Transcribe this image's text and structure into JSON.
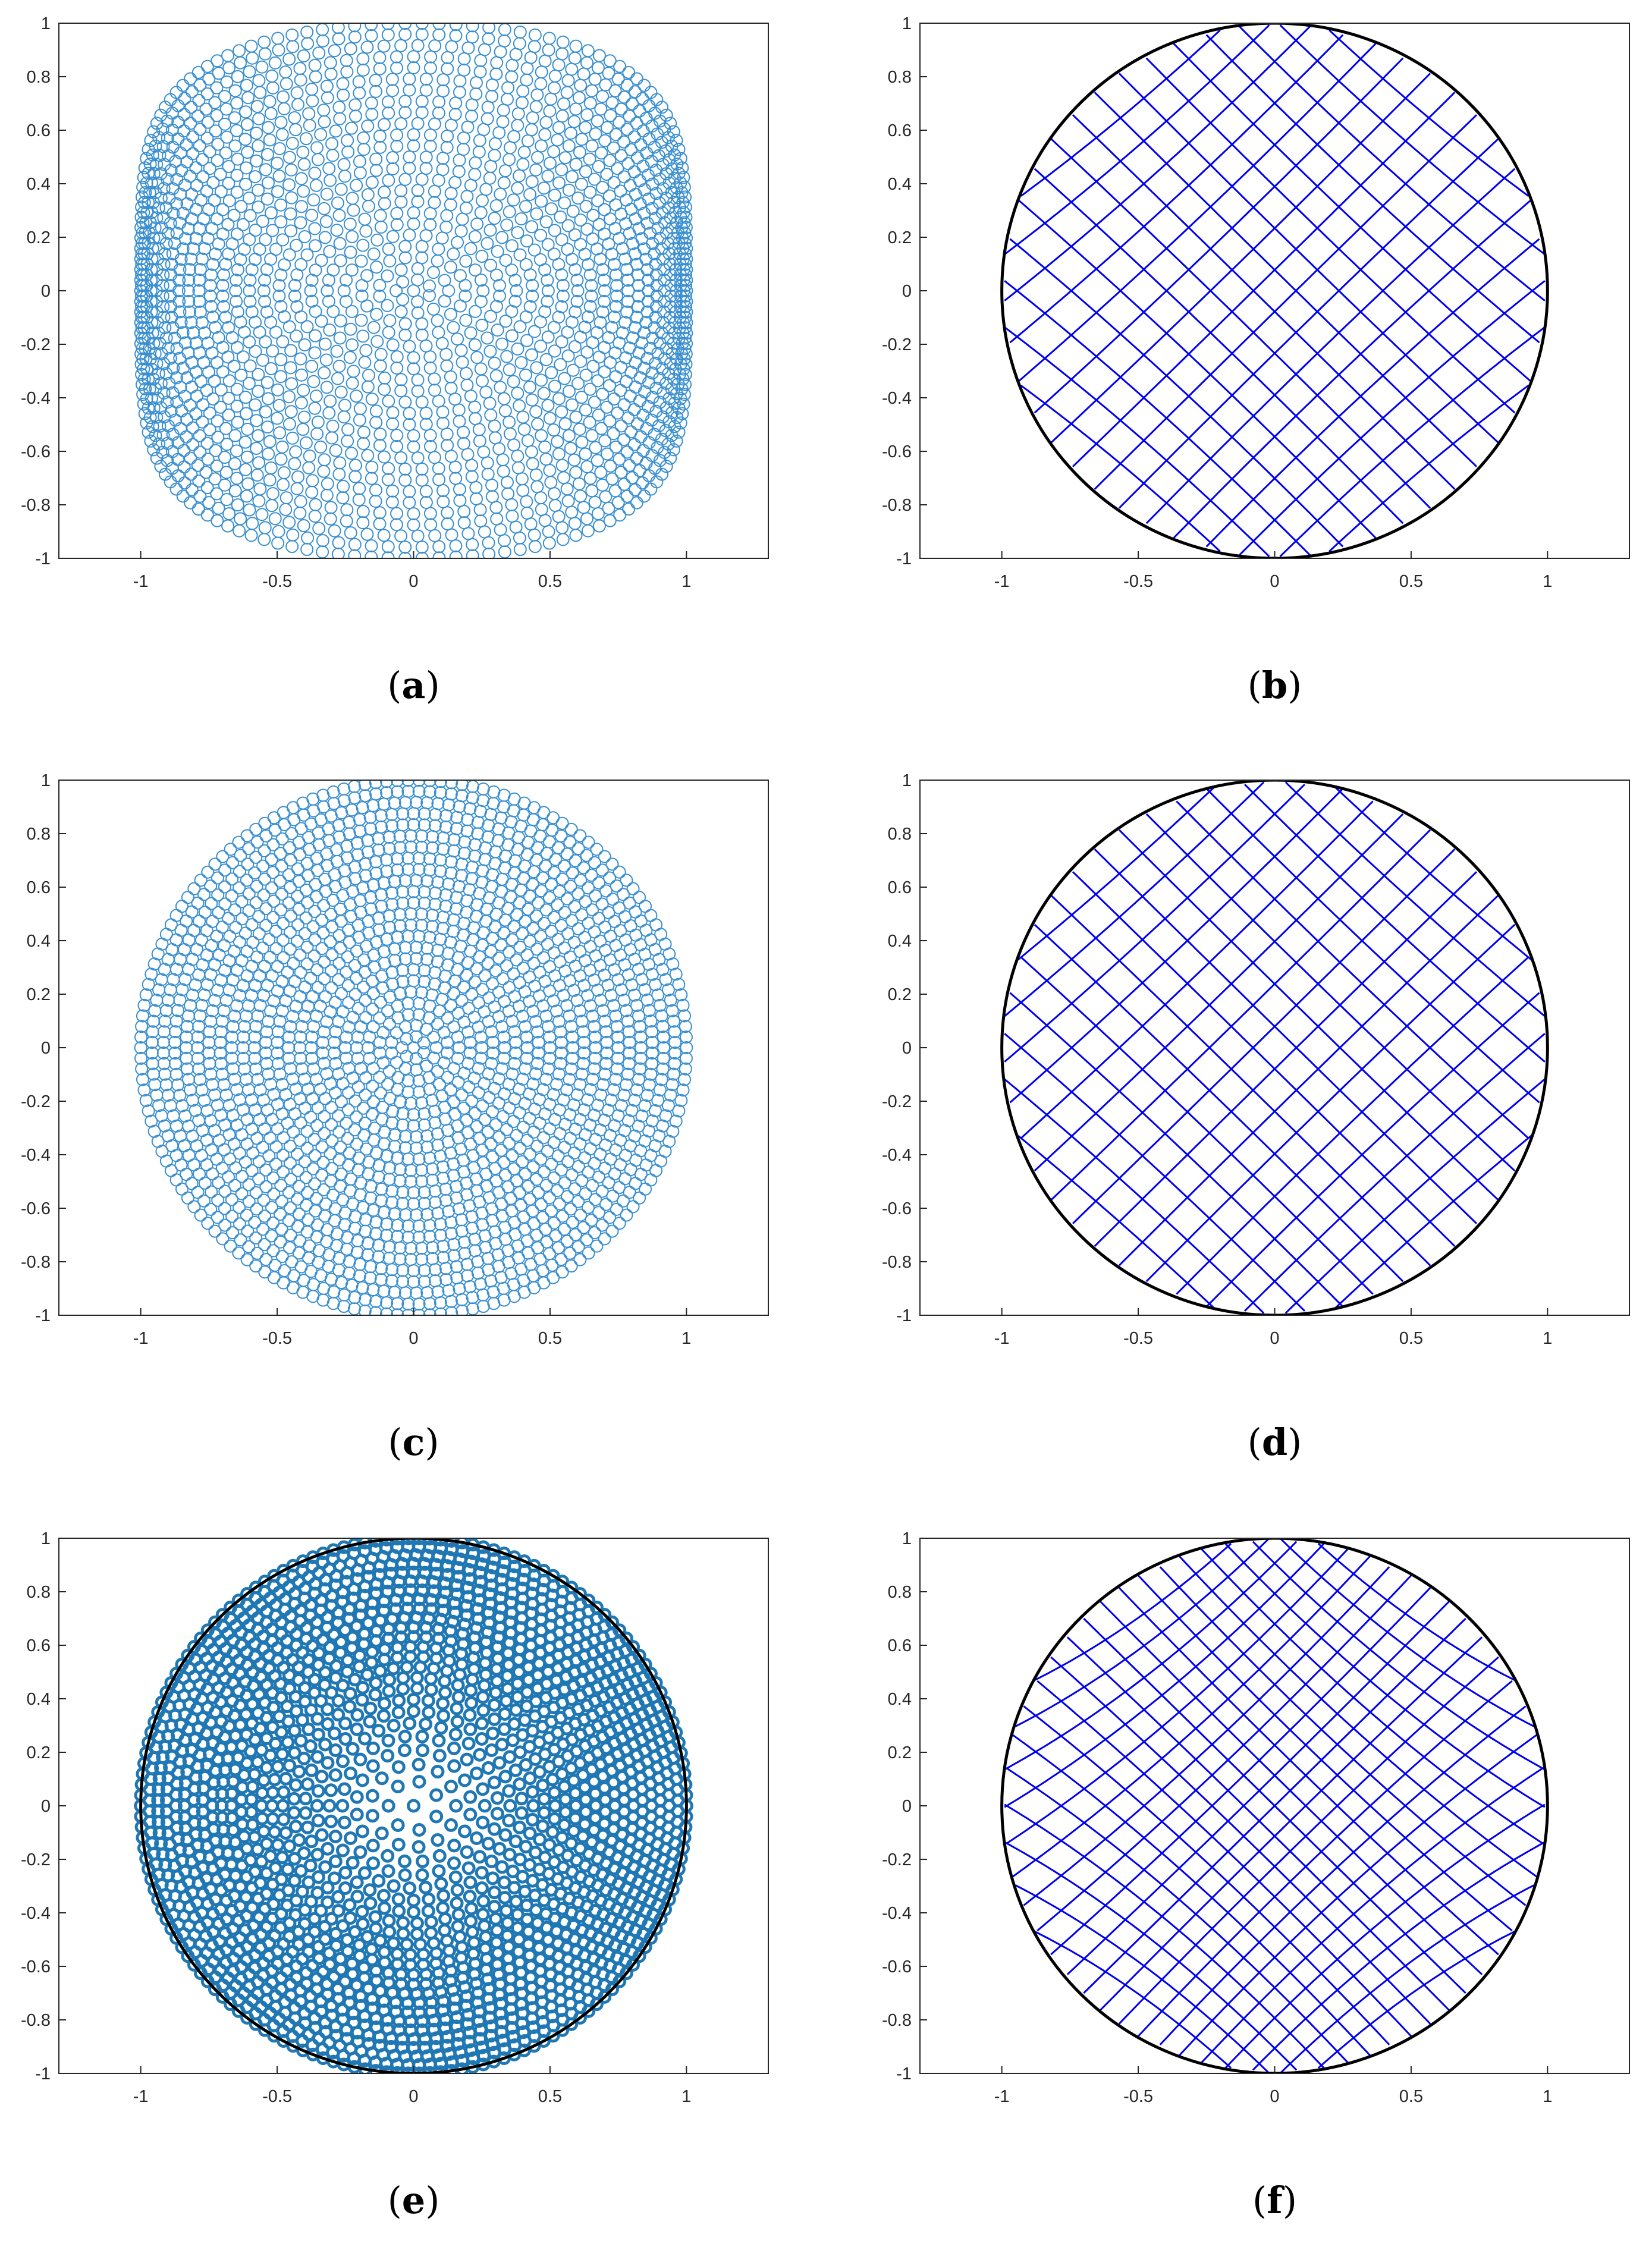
{
  "figure": {
    "panels": [
      {
        "id": "a",
        "caption": "a",
        "kind": "points",
        "variant": 1
      },
      {
        "id": "b",
        "caption": "b",
        "kind": "lattice",
        "variant": 1
      },
      {
        "id": "c",
        "caption": "c",
        "kind": "points",
        "variant": 2
      },
      {
        "id": "d",
        "caption": "d",
        "kind": "lattice",
        "variant": 2
      },
      {
        "id": "e",
        "caption": "e",
        "kind": "points-with-circle",
        "variant": 3
      },
      {
        "id": "f",
        "caption": "f",
        "kind": "lattice",
        "variant": 3
      }
    ]
  },
  "colors": {
    "points": "#3a8fd0",
    "points_heavy": "#1f77b4",
    "lattice": "#0000ee",
    "circle": "#000000",
    "axis": "#262626"
  },
  "chart_data": [
    {
      "panel": "a",
      "type": "scatter",
      "marker": "open-circle",
      "domain": "unit disk",
      "xlim": [
        -1.3,
        1.3
      ],
      "ylim": [
        -1,
        1
      ],
      "xticks": [
        -1,
        -0.5,
        0,
        0.5,
        1
      ],
      "xtick_labels": [
        "-1",
        "-0.5",
        "0",
        "0.5",
        "1"
      ],
      "yticks": [
        -1,
        -0.8,
        -0.6,
        -0.4,
        -0.2,
        0,
        0.2,
        0.4,
        0.6,
        0.8,
        1
      ],
      "ytick_labels": [
        "-1",
        "-0.8",
        "-0.6",
        "-0.4",
        "-0.2",
        "0",
        "0.2",
        "0.4",
        "0.6",
        "0.8",
        "1"
      ],
      "grid": false
    },
    {
      "panel": "b",
      "type": "line",
      "domain": "unit disk",
      "boundary_circle": {
        "center": [
          0,
          0
        ],
        "radius": 1
      },
      "xlim": [
        -1.3,
        1.3
      ],
      "ylim": [
        -1,
        1
      ],
      "xticks": [
        -1,
        -0.5,
        0,
        0.5,
        1
      ],
      "xtick_labels": [
        "-1",
        "-0.5",
        "0",
        "0.5",
        "1"
      ],
      "yticks": [
        -1,
        -0.8,
        -0.6,
        -0.4,
        -0.2,
        0,
        0.2,
        0.4,
        0.6,
        0.8,
        1
      ],
      "ytick_labels": [
        "-1",
        "-0.8",
        "-0.6",
        "-0.4",
        "-0.2",
        "0",
        "0.2",
        "0.4",
        "0.6",
        "0.8",
        "1"
      ],
      "grid": false
    },
    {
      "panel": "c",
      "type": "scatter",
      "marker": "open-circle",
      "domain": "unit disk",
      "xlim": [
        -1.3,
        1.3
      ],
      "ylim": [
        -1,
        1
      ],
      "xticks": [
        -1,
        -0.5,
        0,
        0.5,
        1
      ],
      "xtick_labels": [
        "-1",
        "-0.5",
        "0",
        "0.5",
        "1"
      ],
      "yticks": [
        -1,
        -0.8,
        -0.6,
        -0.4,
        -0.2,
        0,
        0.2,
        0.4,
        0.6,
        0.8,
        1
      ],
      "ytick_labels": [
        "-1",
        "-0.8",
        "-0.6",
        "-0.4",
        "-0.2",
        "0",
        "0.2",
        "0.4",
        "0.6",
        "0.8",
        "1"
      ],
      "grid": false
    },
    {
      "panel": "d",
      "type": "line",
      "domain": "unit disk",
      "boundary_circle": {
        "center": [
          0,
          0
        ],
        "radius": 1
      },
      "xlim": [
        -1.3,
        1.3
      ],
      "ylim": [
        -1,
        1
      ],
      "xticks": [
        -1,
        -0.5,
        0,
        0.5,
        1
      ],
      "xtick_labels": [
        "-1",
        "-0.5",
        "0",
        "0.5",
        "1"
      ],
      "yticks": [
        -1,
        -0.8,
        -0.6,
        -0.4,
        -0.2,
        0,
        0.2,
        0.4,
        0.6,
        0.8,
        1
      ],
      "ytick_labels": [
        "-1",
        "-0.8",
        "-0.6",
        "-0.4",
        "-0.2",
        "0",
        "0.2",
        "0.4",
        "0.6",
        "0.8",
        "1"
      ],
      "grid": false
    },
    {
      "panel": "e",
      "type": "scatter",
      "marker": "open-circle",
      "domain": "unit disk",
      "boundary_circle": {
        "center": [
          0,
          0
        ],
        "radius": 1
      },
      "xlim": [
        -1.3,
        1.3
      ],
      "ylim": [
        -1,
        1
      ],
      "xticks": [
        -1,
        -0.5,
        0,
        0.5,
        1
      ],
      "xtick_labels": [
        "-1",
        "-0.5",
        "0",
        "0.5",
        "1"
      ],
      "yticks": [
        -1,
        -0.8,
        -0.6,
        -0.4,
        -0.2,
        0,
        0.2,
        0.4,
        0.6,
        0.8,
        1
      ],
      "ytick_labels": [
        "-1",
        "-0.8",
        "-0.6",
        "-0.4",
        "-0.2",
        "0",
        "0.2",
        "0.4",
        "0.6",
        "0.8",
        "1"
      ],
      "grid": false
    },
    {
      "panel": "f",
      "type": "line",
      "domain": "unit disk",
      "boundary_circle": {
        "center": [
          0,
          0
        ],
        "radius": 1
      },
      "xlim": [
        -1.3,
        1.3
      ],
      "ylim": [
        -1,
        1
      ],
      "xticks": [
        -1,
        -0.5,
        0,
        0.5,
        1
      ],
      "xtick_labels": [
        "-1",
        "-0.5",
        "0",
        "0.5",
        "1"
      ],
      "yticks": [
        -1,
        -0.8,
        -0.6,
        -0.4,
        -0.2,
        0,
        0.2,
        0.4,
        0.6,
        0.8,
        1
      ],
      "ytick_labels": [
        "-1",
        "-0.8",
        "-0.6",
        "-0.4",
        "-0.2",
        "0",
        "0.2",
        "0.4",
        "0.6",
        "0.8",
        "1"
      ],
      "grid": false
    }
  ]
}
